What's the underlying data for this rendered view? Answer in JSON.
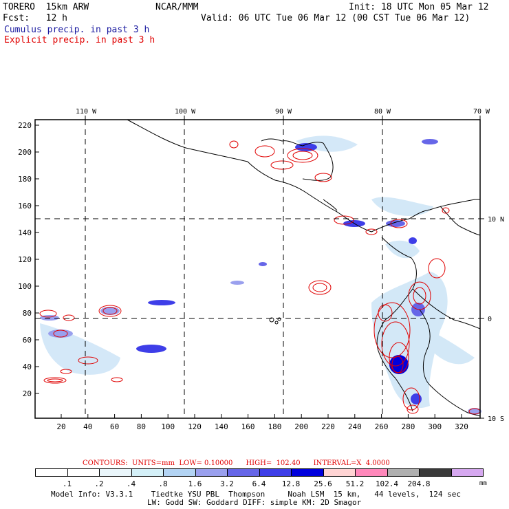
{
  "header": {
    "model": "TORERO  15km ARW",
    "center": "NCAR/MMM",
    "init": "Init: 18 UTC Mon 05 Mar 12",
    "fcst": "Fcst:   12 h",
    "valid": "Valid: 06 UTC Tue 06 Mar 12 (00 CST Tue 06 Mar 12)",
    "legend_cumulus": "Cumulus precip. in past 3 h",
    "legend_explicit": "Explicit precip. in past 3 h"
  },
  "colors": {
    "cumulus": "#1a1aa0",
    "explicit": "#e00000",
    "frame": "#000000"
  },
  "map": {
    "top_lon_labels": [
      "110 W",
      "100 W",
      "90 W",
      "80 W",
      "70 W"
    ],
    "right_lat_labels": [
      "10 N",
      "0",
      "10 S"
    ],
    "y_ticks": [
      "220",
      "200",
      "180",
      "160",
      "140",
      "120",
      "100",
      "80",
      "60",
      "40",
      "20"
    ],
    "x_ticks": [
      "20",
      "40",
      "60",
      "80",
      "100",
      "120",
      "140",
      "160",
      "180",
      "200",
      "220",
      "240",
      "260",
      "280",
      "300",
      "320"
    ]
  },
  "contours": {
    "label": "CONTOURS:  UNITS=mm  LOW= 0.10000      HIGH=  102.40      INTERVAL=X  4.0000"
  },
  "colorbar": {
    "colors": [
      "#ffffff",
      "#ffffff",
      "#eaf6fb",
      "#d4f0f8",
      "#b3d4f4",
      "#9aa0ee",
      "#6666e8",
      "#3e3ee8",
      "#0000dd",
      "#ffd4d4",
      "#ff88bb",
      "#b0b0b0",
      "#3a3a3a",
      "#d6a8f0"
    ],
    "labels": [
      ".1",
      ".2",
      ".4",
      ".8",
      "1.6",
      "3.2",
      "6.4",
      "12.8",
      "25.6",
      "51.2",
      "102.4",
      "204.8"
    ],
    "unit": "mm"
  },
  "footer": {
    "line1": "Model Info: V3.3.1    Tiedtke YSU PBL  Thompson     Noah LSM  15 km,   44 levels,  124 sec",
    "line2": "LW: Godd SW: Goddard DIFF: simple KM: 2D Smagor"
  }
}
